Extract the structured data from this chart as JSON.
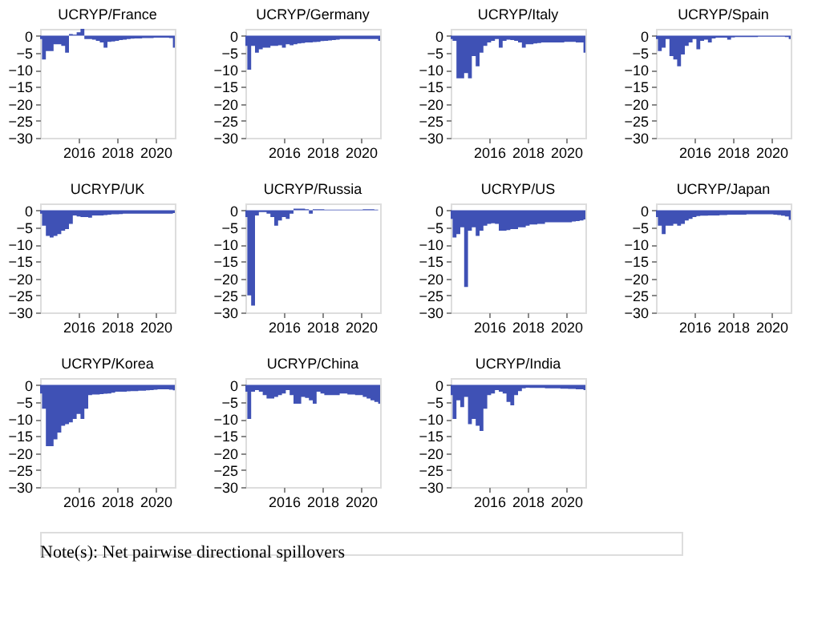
{
  "chart_data": [
    {
      "type": "area",
      "title": "UCRYP/France",
      "color": "#3f51b5",
      "xlim": [
        2014,
        2021
      ],
      "xticks": [
        2016,
        2018,
        2020
      ],
      "ylim": [
        -30,
        2
      ],
      "yticks": [
        0,
        -5,
        -10,
        -15,
        -20,
        -25,
        -30
      ],
      "grid": false,
      "x": [
        2014.0,
        2014.2,
        2014.4,
        2014.6,
        2014.8,
        2015.0,
        2015.2,
        2015.4,
        2015.6,
        2015.8,
        2016.0,
        2016.2,
        2016.4,
        2016.6,
        2016.8,
        2017.0,
        2017.2,
        2017.4,
        2017.6,
        2017.8,
        2018.0,
        2018.2,
        2018.4,
        2018.6,
        2018.8,
        2019.0,
        2019.2,
        2019.4,
        2019.6,
        2019.8,
        2020.0,
        2020.2,
        2020.4,
        2020.6,
        2020.8,
        2021.0
      ],
      "values": [
        -1,
        -7,
        -4.5,
        -4.5,
        -2.5,
        -2.5,
        -3,
        -5,
        0.5,
        0.3,
        1,
        2,
        -1,
        -1,
        -1.2,
        -1.5,
        -2,
        -3.5,
        -1.8,
        -1.7,
        -1.5,
        -1.3,
        -1.2,
        -1,
        -0.9,
        -0.8,
        -0.8,
        -0.7,
        -0.7,
        -0.7,
        -0.6,
        -0.6,
        -0.6,
        -0.6,
        -0.7,
        -3.5
      ]
    },
    {
      "type": "area",
      "title": "UCRYP/Germany",
      "color": "#3f51b5",
      "xlim": [
        2014,
        2021
      ],
      "xticks": [
        2016,
        2018,
        2020
      ],
      "ylim": [
        -30,
        2
      ],
      "yticks": [
        0,
        -5,
        -10,
        -15,
        -20,
        -25,
        -30
      ],
      "grid": false,
      "x": [
        2014.0,
        2014.2,
        2014.4,
        2014.6,
        2014.8,
        2015.0,
        2015.2,
        2015.4,
        2015.6,
        2015.8,
        2016.0,
        2016.2,
        2016.4,
        2016.6,
        2016.8,
        2017.0,
        2017.2,
        2017.4,
        2017.6,
        2017.8,
        2018.0,
        2018.2,
        2018.4,
        2018.6,
        2018.8,
        2019.0,
        2019.2,
        2019.4,
        2019.6,
        2019.8,
        2020.0,
        2020.2,
        2020.4,
        2020.6,
        2020.8,
        2021.0
      ],
      "values": [
        -3,
        -10,
        -3,
        -5,
        -4,
        -3.5,
        -3.5,
        -3,
        -3,
        -2.8,
        -3.5,
        -2.5,
        -2.8,
        -2.5,
        -2.3,
        -2.2,
        -2,
        -2,
        -1.9,
        -1.8,
        -1.6,
        -1.5,
        -1.4,
        -1.3,
        -1.2,
        -1,
        -1,
        -1,
        -1,
        -1,
        -1,
        -1,
        -1,
        -1,
        -1,
        -1.5
      ]
    },
    {
      "type": "area",
      "title": "UCRYP/Italy",
      "color": "#3f51b5",
      "xlim": [
        2014,
        2021
      ],
      "xticks": [
        2016,
        2018,
        2020
      ],
      "ylim": [
        -30,
        2
      ],
      "yticks": [
        0,
        -5,
        -10,
        -15,
        -20,
        -25,
        -30
      ],
      "grid": false,
      "x": [
        2014.0,
        2014.2,
        2014.4,
        2014.6,
        2014.8,
        2015.0,
        2015.2,
        2015.4,
        2015.6,
        2015.8,
        2016.0,
        2016.2,
        2016.4,
        2016.6,
        2016.8,
        2017.0,
        2017.2,
        2017.4,
        2017.6,
        2017.8,
        2018.0,
        2018.2,
        2018.4,
        2018.6,
        2018.8,
        2019.0,
        2019.2,
        2019.4,
        2019.6,
        2019.8,
        2020.0,
        2020.2,
        2020.4,
        2020.6,
        2020.8,
        2021.0
      ],
      "values": [
        -1,
        -1.5,
        -12.5,
        -12.5,
        -11,
        -12.5,
        -6,
        -9,
        -5,
        -3,
        -2,
        -1.5,
        -1,
        -3.5,
        -1.5,
        -1.2,
        -1.3,
        -1.5,
        -2,
        -3.5,
        -2.5,
        -2.5,
        -2.3,
        -2.2,
        -2,
        -2,
        -2,
        -2,
        -2,
        -2,
        -1.8,
        -1.8,
        -1.8,
        -2,
        -2,
        -5
      ]
    },
    {
      "type": "area",
      "title": "UCRYP/Spain",
      "color": "#3f51b5",
      "xlim": [
        2014,
        2021
      ],
      "xticks": [
        2016,
        2018,
        2020
      ],
      "ylim": [
        -30,
        2
      ],
      "yticks": [
        0,
        -5,
        -10,
        -15,
        -20,
        -25,
        -30
      ],
      "grid": false,
      "x": [
        2014.0,
        2014.2,
        2014.4,
        2014.6,
        2014.8,
        2015.0,
        2015.2,
        2015.4,
        2015.6,
        2015.8,
        2016.0,
        2016.2,
        2016.4,
        2016.6,
        2016.8,
        2017.0,
        2017.2,
        2017.4,
        2017.6,
        2017.8,
        2018.0,
        2018.2,
        2018.4,
        2018.6,
        2018.8,
        2019.0,
        2019.2,
        2019.4,
        2019.6,
        2019.8,
        2020.0,
        2020.2,
        2020.4,
        2020.6,
        2020.8,
        2021.0
      ],
      "values": [
        -1,
        -4.5,
        -3.5,
        -1,
        -6,
        -7,
        -9,
        -5.5,
        -3,
        -2,
        -1,
        -4,
        -1.5,
        -1.2,
        -2,
        -0.8,
        -0.6,
        -0.6,
        -0.6,
        -1.2,
        -0.5,
        -0.4,
        -0.4,
        -0.4,
        -0.4,
        -0.4,
        -0.4,
        -0.3,
        -0.3,
        -0.3,
        -0.3,
        -0.3,
        -0.3,
        -0.3,
        -0.4,
        -1
      ]
    },
    {
      "type": "area",
      "title": "UCRYP/UK",
      "color": "#3f51b5",
      "xlim": [
        2014,
        2021
      ],
      "xticks": [
        2016,
        2018,
        2020
      ],
      "ylim": [
        -30,
        2
      ],
      "yticks": [
        0,
        -5,
        -10,
        -15,
        -20,
        -25,
        -30
      ],
      "grid": false,
      "x": [
        2014.0,
        2014.2,
        2014.4,
        2014.6,
        2014.8,
        2015.0,
        2015.2,
        2015.4,
        2015.6,
        2015.8,
        2016.0,
        2016.2,
        2016.4,
        2016.6,
        2016.8,
        2017.0,
        2017.2,
        2017.4,
        2017.6,
        2017.8,
        2018.0,
        2018.2,
        2018.4,
        2018.6,
        2018.8,
        2019.0,
        2019.2,
        2019.4,
        2019.6,
        2019.8,
        2020.0,
        2020.2,
        2020.4,
        2020.6,
        2020.8,
        2021.0
      ],
      "values": [
        -1,
        -4.5,
        -7.5,
        -8,
        -7.5,
        -7,
        -6,
        -5.5,
        -4,
        -1.5,
        -1.8,
        -2,
        -2,
        -2.2,
        -1.5,
        -1.5,
        -1.5,
        -1.4,
        -1.3,
        -1.2,
        -1.2,
        -1.1,
        -1,
        -1,
        -1,
        -1,
        -1,
        -1,
        -1,
        -1,
        -1,
        -1,
        -1,
        -1,
        -1,
        -0.8
      ]
    },
    {
      "type": "area",
      "title": "UCRYP/Russia",
      "color": "#3f51b5",
      "xlim": [
        2014,
        2021
      ],
      "xticks": [
        2016,
        2018,
        2020
      ],
      "ylim": [
        -30,
        2
      ],
      "yticks": [
        0,
        -5,
        -10,
        -15,
        -20,
        -25,
        -30
      ],
      "grid": false,
      "x": [
        2014.0,
        2014.2,
        2014.4,
        2014.6,
        2014.8,
        2015.0,
        2015.2,
        2015.4,
        2015.6,
        2015.8,
        2016.0,
        2016.2,
        2016.4,
        2016.6,
        2016.8,
        2017.0,
        2017.2,
        2017.4,
        2017.6,
        2017.8,
        2018.0,
        2018.2,
        2018.4,
        2018.6,
        2018.8,
        2019.0,
        2019.2,
        2019.4,
        2019.6,
        2019.8,
        2020.0,
        2020.2,
        2020.4,
        2020.6,
        2020.8,
        2021.0
      ],
      "values": [
        -2,
        -25,
        -28,
        -1.5,
        -0.5,
        -0.5,
        -1,
        -2,
        -4.5,
        -3,
        -2,
        -2.5,
        -1,
        0.5,
        0.5,
        0.5,
        0.3,
        -1,
        0.3,
        0.3,
        0.3,
        0.2,
        0.2,
        0.2,
        0.2,
        0.2,
        0.2,
        0.2,
        0.2,
        0.2,
        0.2,
        0.3,
        0.3,
        0.3,
        0.2,
        0
      ]
    },
    {
      "type": "area",
      "title": "UCRYP/US",
      "color": "#3f51b5",
      "xlim": [
        2014,
        2021
      ],
      "xticks": [
        2016,
        2018,
        2020
      ],
      "ylim": [
        -30,
        2
      ],
      "yticks": [
        0,
        -5,
        -10,
        -15,
        -20,
        -25,
        -30
      ],
      "grid": false,
      "x": [
        2014.0,
        2014.2,
        2014.4,
        2014.6,
        2014.8,
        2015.0,
        2015.2,
        2015.4,
        2015.6,
        2015.8,
        2016.0,
        2016.2,
        2016.4,
        2016.6,
        2016.8,
        2017.0,
        2017.2,
        2017.4,
        2017.6,
        2017.8,
        2018.0,
        2018.2,
        2018.4,
        2018.6,
        2018.8,
        2019.0,
        2019.2,
        2019.4,
        2019.6,
        2019.8,
        2020.0,
        2020.2,
        2020.4,
        2020.6,
        2020.8,
        2021.0
      ],
      "values": [
        -2.5,
        -8,
        -7,
        -5,
        -22.5,
        -6,
        -5,
        -7.5,
        -6,
        -4.5,
        -4,
        -3.8,
        -4,
        -6,
        -6,
        -5.8,
        -5.5,
        -5.5,
        -5,
        -5,
        -4.5,
        -4.2,
        -4.2,
        -4,
        -4,
        -3.5,
        -3.5,
        -3.5,
        -3.5,
        -3.5,
        -3.5,
        -3.5,
        -3.3,
        -3.2,
        -3,
        -2.7
      ]
    },
    {
      "type": "area",
      "title": "UCRYP/Japan",
      "color": "#3f51b5",
      "xlim": [
        2014,
        2021
      ],
      "xticks": [
        2016,
        2018,
        2020
      ],
      "ylim": [
        -30,
        2
      ],
      "yticks": [
        0,
        -5,
        -10,
        -15,
        -20,
        -25,
        -30
      ],
      "grid": false,
      "x": [
        2014.0,
        2014.2,
        2014.4,
        2014.6,
        2014.8,
        2015.0,
        2015.2,
        2015.4,
        2015.6,
        2015.8,
        2016.0,
        2016.2,
        2016.4,
        2016.6,
        2016.8,
        2017.0,
        2017.2,
        2017.4,
        2017.6,
        2017.8,
        2018.0,
        2018.2,
        2018.4,
        2018.6,
        2018.8,
        2019.0,
        2019.2,
        2019.4,
        2019.6,
        2019.8,
        2020.0,
        2020.2,
        2020.4,
        2020.6,
        2020.8,
        2021.0
      ],
      "values": [
        -2,
        -4.5,
        -7,
        -4.5,
        -4.5,
        -4,
        -4.5,
        -4,
        -3,
        -2.5,
        -2,
        -1.7,
        -1.6,
        -1.6,
        -1.5,
        -1.5,
        -1.5,
        -1.4,
        -1.4,
        -1.3,
        -1.3,
        -1.3,
        -1.3,
        -1.3,
        -1.2,
        -1.2,
        -1.2,
        -1.2,
        -1.2,
        -1.2,
        -1.2,
        -1.3,
        -1.4,
        -1.6,
        -1.8,
        -2.8
      ]
    },
    {
      "type": "area",
      "title": "UCRYP/Korea",
      "color": "#3f51b5",
      "xlim": [
        2014,
        2021
      ],
      "xticks": [
        2016,
        2018,
        2020
      ],
      "ylim": [
        -30,
        2
      ],
      "yticks": [
        0,
        -5,
        -10,
        -15,
        -20,
        -25,
        -30
      ],
      "grid": false,
      "x": [
        2014.0,
        2014.2,
        2014.4,
        2014.6,
        2014.8,
        2015.0,
        2015.2,
        2015.4,
        2015.6,
        2015.8,
        2016.0,
        2016.2,
        2016.4,
        2016.6,
        2016.8,
        2017.0,
        2017.2,
        2017.4,
        2017.6,
        2017.8,
        2018.0,
        2018.2,
        2018.4,
        2018.6,
        2018.8,
        2019.0,
        2019.2,
        2019.4,
        2019.6,
        2019.8,
        2020.0,
        2020.2,
        2020.4,
        2020.6,
        2020.8,
        2021.0
      ],
      "values": [
        -2.5,
        -7,
        -18,
        -18,
        -16,
        -14,
        -12,
        -11.5,
        -11,
        -10,
        -8.5,
        -10,
        -7,
        -3,
        -2.8,
        -2.8,
        -2.7,
        -2.6,
        -2.5,
        -2.3,
        -2,
        -2,
        -2,
        -1.9,
        -1.8,
        -1.8,
        -1.7,
        -1.7,
        -1.6,
        -1.5,
        -1.4,
        -1.3,
        -1.3,
        -1.3,
        -1.4,
        -1.6
      ]
    },
    {
      "type": "area",
      "title": "UCRYP/China",
      "color": "#3f51b5",
      "xlim": [
        2014,
        2021
      ],
      "xticks": [
        2016,
        2018,
        2020
      ],
      "ylim": [
        -30,
        2
      ],
      "yticks": [
        0,
        -5,
        -10,
        -15,
        -20,
        -25,
        -30
      ],
      "grid": false,
      "x": [
        2014.0,
        2014.2,
        2014.4,
        2014.6,
        2014.8,
        2015.0,
        2015.2,
        2015.4,
        2015.6,
        2015.8,
        2016.0,
        2016.2,
        2016.4,
        2016.6,
        2016.8,
        2017.0,
        2017.2,
        2017.4,
        2017.6,
        2017.8,
        2018.0,
        2018.2,
        2018.4,
        2018.6,
        2018.8,
        2019.0,
        2019.2,
        2019.4,
        2019.6,
        2019.8,
        2020.0,
        2020.2,
        2020.4,
        2020.6,
        2020.8,
        2021.0
      ],
      "values": [
        -2,
        -10,
        -2,
        -1.5,
        -2,
        -3,
        -4,
        -4,
        -3.5,
        -3,
        -2.5,
        -1.5,
        -3,
        -5.5,
        -5.5,
        -3.5,
        -3.8,
        -4.5,
        -5.5,
        -2,
        -2.5,
        -3,
        -3,
        -3,
        -3,
        -2.5,
        -2.5,
        -2.8,
        -2.8,
        -3,
        -3,
        -3.5,
        -4,
        -4.5,
        -5,
        -5.5
      ]
    },
    {
      "type": "area",
      "title": "UCRYP/India",
      "color": "#3f51b5",
      "xlim": [
        2014,
        2021
      ],
      "xticks": [
        2016,
        2018,
        2020
      ],
      "ylim": [
        -30,
        2
      ],
      "yticks": [
        0,
        -5,
        -10,
        -15,
        -20,
        -25,
        -30
      ],
      "grid": false,
      "annotations": [
        "Note(s): Net pairwise directional spillovers"
      ],
      "x": [
        2014.0,
        2014.2,
        2014.4,
        2014.6,
        2014.8,
        2015.0,
        2015.2,
        2015.4,
        2015.6,
        2015.8,
        2016.0,
        2016.2,
        2016.4,
        2016.6,
        2016.8,
        2017.0,
        2017.2,
        2017.4,
        2017.6,
        2017.8,
        2018.0,
        2018.2,
        2018.4,
        2018.6,
        2018.8,
        2019.0,
        2019.2,
        2019.4,
        2019.6,
        2019.8,
        2020.0,
        2020.2,
        2020.4,
        2020.6,
        2020.8,
        2021.0
      ],
      "values": [
        -3,
        -10,
        -4.5,
        -6.5,
        -3.5,
        -11.5,
        -10,
        -12,
        -13.5,
        -7,
        -3,
        -2.5,
        -1.5,
        -2,
        -2.5,
        -5,
        -6,
        -3,
        -1.8,
        -1,
        -0.8,
        -0.9,
        -0.9,
        -0.9,
        -0.9,
        -1,
        -1,
        -1,
        -1,
        -1.1,
        -1.1,
        -1.2,
        -1.2,
        -1.3,
        -1.3,
        -1.5
      ]
    }
  ]
}
